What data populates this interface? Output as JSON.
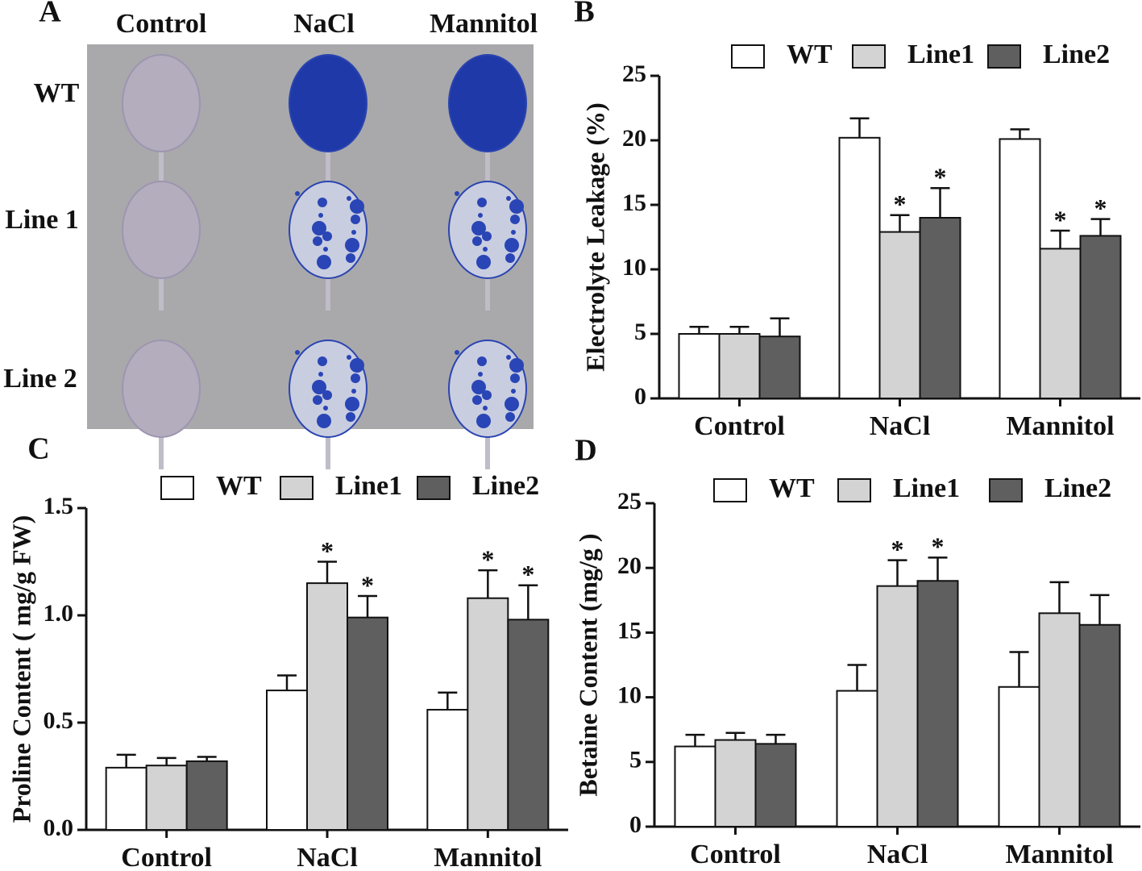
{
  "chart_data": [
    {
      "type": "image",
      "label": "A",
      "columns": [
        "Control",
        "NaCl",
        "Mannitol"
      ],
      "rows": [
        "WT",
        "Line 1",
        "Line 2"
      ]
    },
    {
      "type": "bar",
      "label": "B",
      "y_label": "Electrolyte Leakage (%)",
      "categories": [
        "Control",
        "NaCl",
        "Mannitol"
      ],
      "ylim": [
        0,
        25
      ],
      "yticks": [
        0,
        5,
        10,
        15,
        20,
        25
      ],
      "series": [
        {
          "name": "WT",
          "color": "#ffffff",
          "values": [
            5.0,
            20.2,
            20.1
          ],
          "errors": [
            0.55,
            1.5,
            0.75
          ],
          "significance": [
            null,
            null,
            null
          ]
        },
        {
          "name": "Line1",
          "color": "#d3d3d3",
          "values": [
            5.0,
            12.9,
            11.6
          ],
          "errors": [
            0.55,
            1.3,
            1.4
          ],
          "significance": [
            null,
            "*",
            "*"
          ]
        },
        {
          "name": "Line2",
          "color": "#5f5f5f",
          "values": [
            4.8,
            14.0,
            12.6
          ],
          "errors": [
            1.4,
            2.3,
            1.3
          ],
          "significance": [
            null,
            "*",
            "*"
          ]
        }
      ]
    },
    {
      "type": "bar",
      "label": "C",
      "y_label": "Proline Content ( mg/g  FW)",
      "categories": [
        "Control",
        "NaCl",
        "Mannitol"
      ],
      "ylim": [
        0,
        1.5
      ],
      "yticks": [
        {
          "value": 0,
          "label": "0.0"
        },
        {
          "value": 0.5,
          "label": "0.5"
        },
        {
          "value": 1,
          "label": "1.0"
        },
        {
          "value": 1.5,
          "label": "1.5"
        }
      ],
      "series": [
        {
          "name": "WT",
          "color": "#ffffff",
          "values": [
            0.29,
            0.65,
            0.56
          ],
          "errors": [
            0.06,
            0.07,
            0.08
          ],
          "significance": [
            null,
            null,
            null
          ]
        },
        {
          "name": "Line1",
          "color": "#d3d3d3",
          "values": [
            0.3,
            1.15,
            1.08
          ],
          "errors": [
            0.035,
            0.1,
            0.13
          ],
          "significance": [
            null,
            "*",
            "*"
          ]
        },
        {
          "name": "Line2",
          "color": "#5f5f5f",
          "values": [
            0.32,
            0.99,
            0.98
          ],
          "errors": [
            0.02,
            0.1,
            0.16
          ],
          "significance": [
            null,
            "*",
            "*"
          ]
        }
      ]
    },
    {
      "type": "bar",
      "label": "D",
      "y_label": "Betaine Content (mg/g )",
      "categories": [
        "Control",
        "NaCl",
        "Mannitol"
      ],
      "ylim": [
        0,
        25
      ],
      "yticks": [
        0,
        5,
        10,
        15,
        20,
        25
      ],
      "series": [
        {
          "name": "WT",
          "color": "#ffffff",
          "values": [
            6.2,
            10.5,
            10.8
          ],
          "errors": [
            0.9,
            2.0,
            2.7
          ],
          "significance": [
            null,
            null,
            null
          ]
        },
        {
          "name": "Line1",
          "color": "#d3d3d3",
          "values": [
            6.7,
            18.6,
            16.5
          ],
          "errors": [
            0.55,
            2.0,
            2.4
          ],
          "significance": [
            null,
            "*",
            null
          ]
        },
        {
          "name": "Line2",
          "color": "#5f5f5f",
          "values": [
            6.4,
            19.0,
            15.6
          ],
          "errors": [
            0.7,
            1.8,
            2.3
          ],
          "significance": [
            null,
            "*",
            null
          ]
        }
      ]
    }
  ]
}
